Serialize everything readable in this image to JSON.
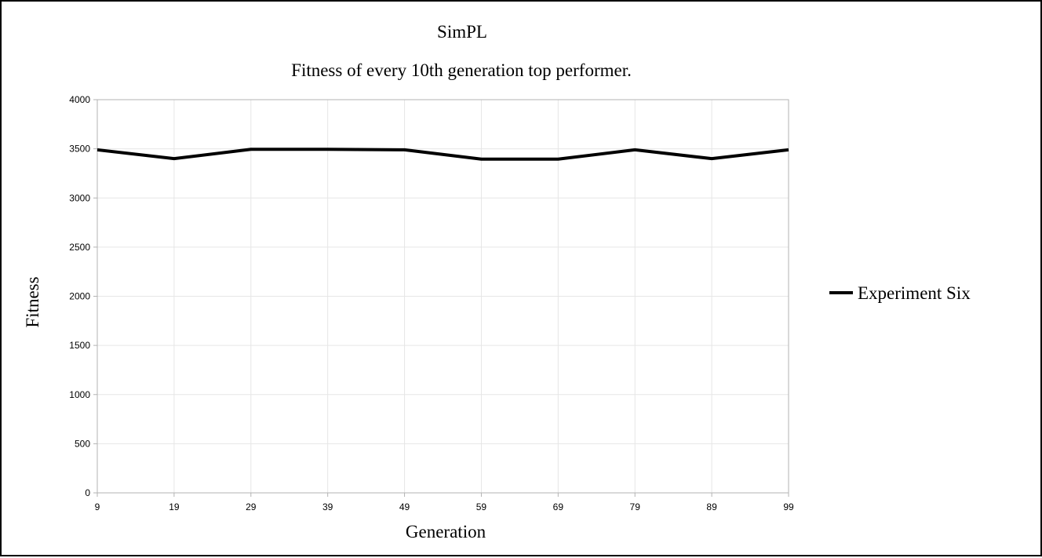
{
  "chart_data": {
    "type": "line",
    "title": "SimPL",
    "subtitle": "Fitness of every 10th generation top performer.",
    "xlabel": "Generation",
    "ylabel": "Fitness",
    "categories": [
      "9",
      "19",
      "29",
      "39",
      "49",
      "59",
      "69",
      "79",
      "89",
      "99"
    ],
    "ylim": [
      0,
      4000
    ],
    "yticks": [
      "0",
      "500",
      "1000",
      "1500",
      "2000",
      "2500",
      "3000",
      "3500",
      "4000"
    ],
    "grid": true,
    "legend_position": "right",
    "series": [
      {
        "name": "Experiment Six",
        "color": "#000000",
        "values": [
          3490,
          3400,
          3495,
          3495,
          3490,
          3395,
          3395,
          3490,
          3400,
          3490
        ]
      }
    ],
    "colors": {
      "grid": "#e6e6e6",
      "axis": "#b3b3b3",
      "line": "#000000"
    }
  }
}
